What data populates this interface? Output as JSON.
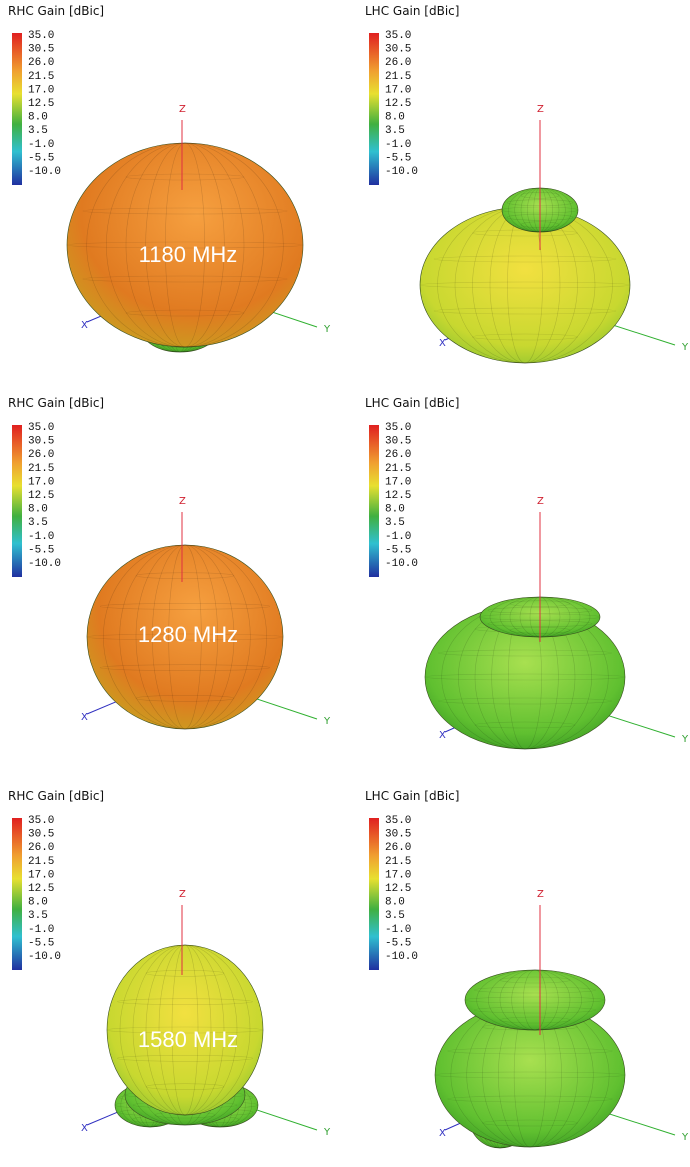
{
  "panels": [
    {
      "title": "RHC Gain [dBic]",
      "label": "1180 MHz"
    },
    {
      "title": "LHC Gain [dBic]"
    },
    {
      "title": "RHC Gain [dBic]",
      "label": "1280 MHz"
    },
    {
      "title": "LHC Gain [dBic]"
    },
    {
      "title": "RHC Gain [dBic]",
      "label": "1580 MHz"
    },
    {
      "title": "LHC Gain [dBic]"
    }
  ],
  "scale": [
    "35.0",
    "30.5",
    "26.0",
    "21.5",
    "17.0",
    "12.5",
    "8.0",
    "3.5",
    "-1.0",
    "-5.5",
    "-10.0"
  ],
  "axes": {
    "z": "Z",
    "y": "Y",
    "x": "X"
  }
}
